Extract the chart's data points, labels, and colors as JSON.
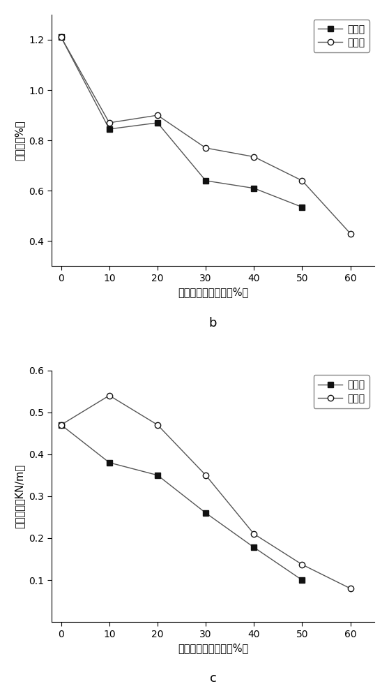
{
  "chart_b": {
    "x": [
      0,
      10,
      20,
      30,
      40,
      50,
      60
    ],
    "before": [
      1.21,
      0.845,
      0.87,
      0.64,
      0.61,
      0.535,
      null
    ],
    "after": [
      1.21,
      0.87,
      0.9,
      0.77,
      0.735,
      0.64,
      0.43
    ],
    "ylabel": "伸长率（%）",
    "xlabel": "无机纤维百分含量（%）",
    "label_b": "b",
    "ylim": [
      0.3,
      1.3
    ],
    "yticks": [
      0.4,
      0.6,
      0.8,
      1.0,
      1.2
    ],
    "xticks": [
      0,
      10,
      20,
      30,
      40,
      50,
      60
    ]
  },
  "chart_c": {
    "x": [
      0,
      10,
      20,
      30,
      40,
      50,
      60
    ],
    "before": [
      0.47,
      0.38,
      0.35,
      0.26,
      0.178,
      0.1,
      null
    ],
    "after": [
      0.47,
      0.54,
      0.47,
      0.35,
      0.21,
      0.137,
      0.08
    ],
    "ylabel": "环压强度（KN/m）",
    "xlabel": "无机纤维百分含量（%）",
    "label_c": "c",
    "ylim": [
      0,
      0.6
    ],
    "yticks": [
      0.1,
      0.2,
      0.3,
      0.4,
      0.5,
      0.6
    ],
    "xticks": [
      0,
      10,
      20,
      30,
      40,
      50,
      60
    ]
  },
  "legend_before": "改性前",
  "legend_after": "改性后",
  "line_color": "#555555",
  "marker_before": "s",
  "marker_after": "o",
  "marker_size": 6,
  "marker_color_before": "#111111",
  "marker_color_after": "#111111",
  "marker_face_before": "#111111",
  "marker_face_after": "white",
  "background_color": "#ffffff"
}
